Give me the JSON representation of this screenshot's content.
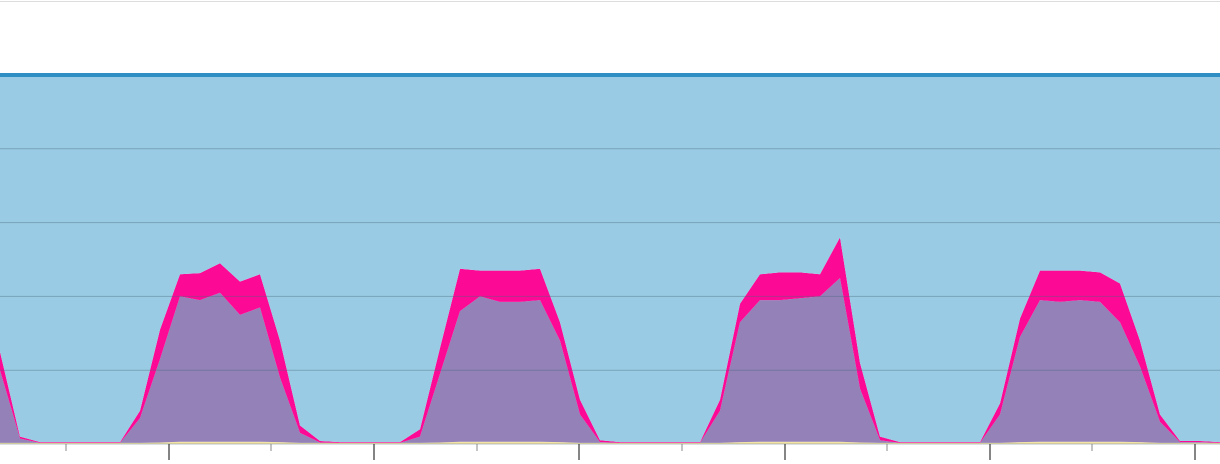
{
  "chart_data": {
    "type": "stacked_area",
    "x": [
      0,
      2,
      4,
      6,
      8,
      10,
      12,
      14,
      16,
      18,
      20,
      22,
      24,
      26,
      28,
      30,
      32,
      34,
      36,
      38,
      40,
      42,
      44,
      46,
      48,
      50,
      52,
      54,
      56,
      58,
      60,
      62,
      64,
      66,
      68,
      70,
      72,
      74,
      76,
      78,
      80,
      82,
      84,
      86,
      88,
      90,
      92,
      94,
      96,
      98,
      100,
      102,
      104,
      106,
      108,
      110,
      112,
      114,
      116,
      118,
      120,
      122
    ],
    "xlim": [
      0,
      122
    ],
    "xticks": [
      16.9,
      37.4,
      57.9,
      78.5,
      99,
      119.5
    ],
    "xticks_minor": [
      6.6,
      27.1,
      47.7,
      68.2,
      88.7,
      109.2
    ],
    "ylim": [
      0,
      100
    ],
    "yticks": [
      0,
      20,
      40,
      60,
      80,
      100
    ],
    "grid": true,
    "series": [
      {
        "color": "#f3e3a6",
        "values": [
          0.3,
          0.3,
          0.3,
          0.3,
          0.3,
          0.3,
          0.3,
          0.3,
          0.4,
          0.6,
          0.6,
          0.6,
          0.6,
          0.6,
          0.5,
          0.3,
          0.3,
          0.3,
          0.3,
          0.3,
          0.3,
          0.3,
          0.4,
          0.6,
          0.6,
          0.6,
          0.6,
          0.6,
          0.5,
          0.3,
          0.3,
          0.3,
          0.3,
          0.3,
          0.3,
          0.3,
          0.3,
          0.5,
          0.6,
          0.6,
          0.6,
          0.6,
          0.6,
          0.4,
          0.3,
          0.3,
          0.3,
          0.3,
          0.3,
          0.3,
          0.3,
          0.5,
          0.6,
          0.6,
          0.6,
          0.6,
          0.6,
          0.5,
          0.3,
          0.3,
          0.3,
          0.3
        ]
      },
      {
        "color": "#9381b8",
        "values": [
          19.7,
          1.2,
          0,
          0,
          0,
          0,
          0,
          6.7,
          22.6,
          39.4,
          38.4,
          40.4,
          34.4,
          36.4,
          17.5,
          2.7,
          0.1,
          0,
          0,
          0,
          0,
          1.7,
          18.6,
          35.4,
          39.4,
          37.9,
          37.9,
          38.4,
          27.5,
          7.7,
          0.2,
          0,
          0,
          0,
          0,
          0,
          8.7,
          32.5,
          38.4,
          38.4,
          38.9,
          39.4,
          44.4,
          14.6,
          0.7,
          0,
          0,
          0,
          0,
          0,
          7.7,
          28.5,
          38.4,
          37.9,
          38.4,
          37.9,
          32.4,
          20.5,
          5.7,
          0.2,
          0.2,
          0
        ]
      },
      {
        "color": "#fc0a96",
        "values": [
          5,
          0.5,
          0.2,
          0.2,
          0.2,
          0.2,
          0.2,
          2,
          8,
          6,
          7.3,
          8,
          9,
          9,
          10,
          2,
          0.4,
          0.2,
          0.2,
          0.2,
          0.2,
          2,
          7,
          11.5,
          7,
          8.5,
          8.5,
          8.5,
          5,
          4,
          0.5,
          0.2,
          0.2,
          0.2,
          0.2,
          0.2,
          3,
          5,
          7,
          7.5,
          7,
          6,
          11,
          7,
          1,
          0.2,
          0.2,
          0.2,
          0.2,
          0.2,
          3,
          5,
          8,
          8.5,
          8,
          8,
          10.5,
          7,
          2,
          0.3,
          0.3,
          0.2
        ]
      },
      {
        "color": "#99cce4",
        "values": [
          75,
          98,
          99.5,
          99.5,
          99.5,
          99.5,
          99.5,
          91,
          69,
          54,
          53.7,
          51,
          56,
          54,
          72,
          95,
          99.2,
          99.5,
          99.5,
          99.5,
          99.5,
          96,
          74,
          52.5,
          53,
          53,
          53,
          52.5,
          67,
          88,
          99,
          99.5,
          99.5,
          99.5,
          99.5,
          99.5,
          88,
          62,
          54,
          53.5,
          53.5,
          54,
          44,
          78,
          98,
          99.5,
          99.5,
          99.5,
          99.5,
          99.5,
          89,
          66,
          53,
          53,
          53,
          53.5,
          56.5,
          72,
          92,
          99.2,
          99.2,
          99.5
        ]
      }
    ]
  }
}
